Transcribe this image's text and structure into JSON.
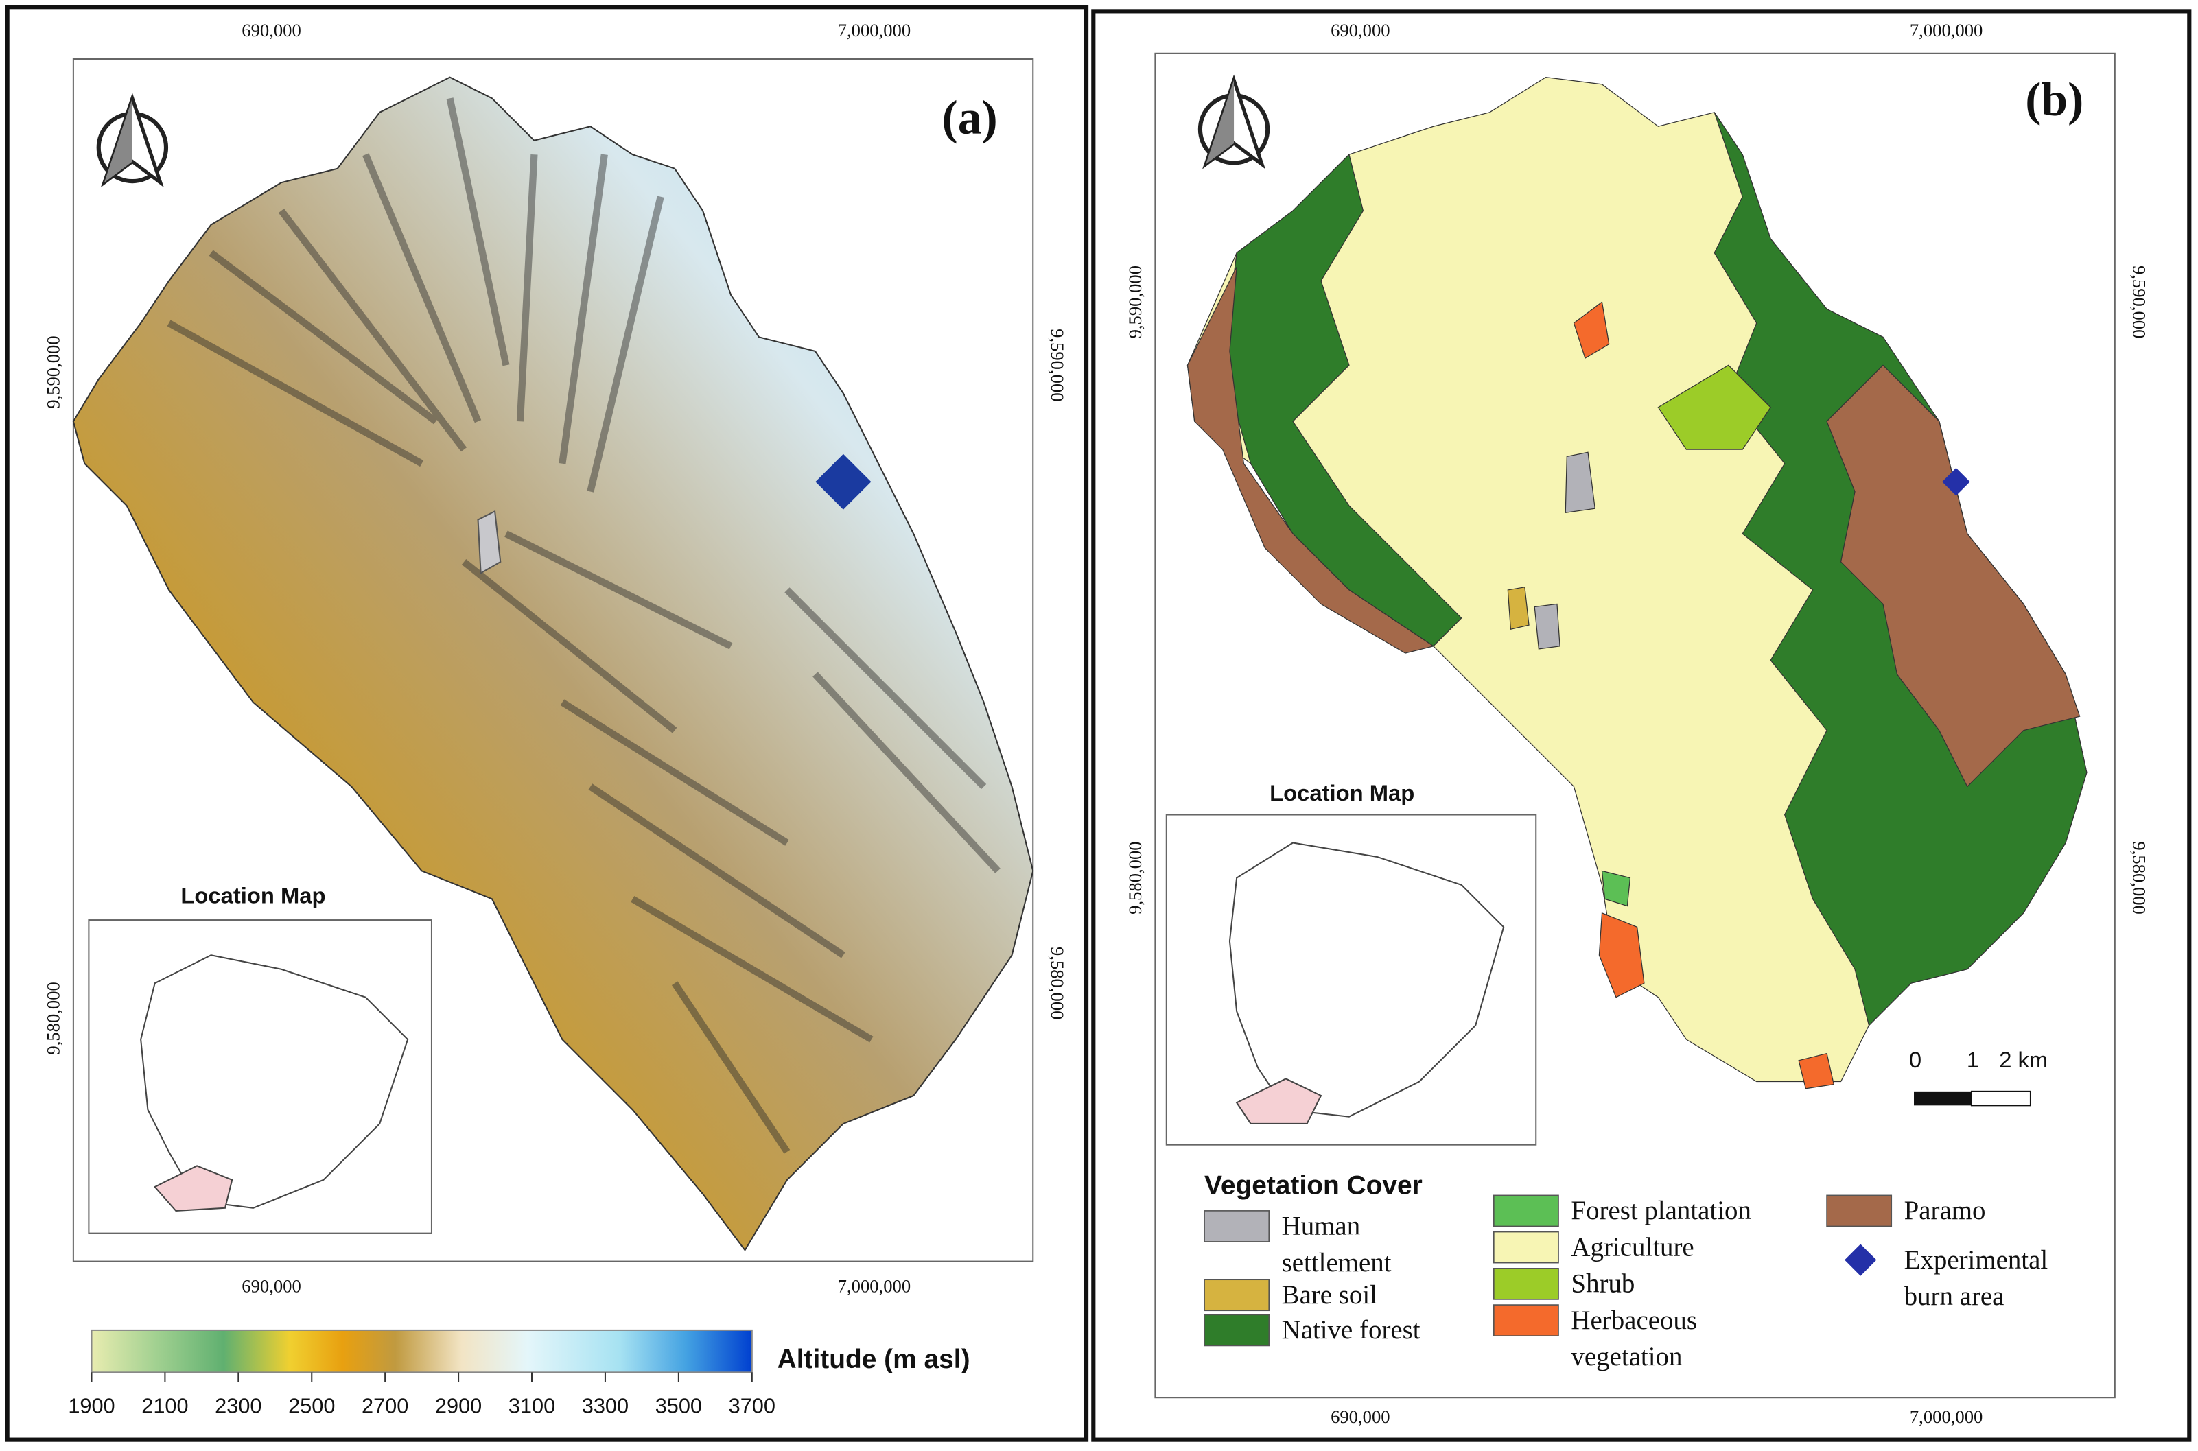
{
  "panel_a": {
    "label": "(a)",
    "x_labels_top": [
      "690,000",
      "7,000,000"
    ],
    "x_labels_bottom": [
      "690,000",
      "7,000,000"
    ],
    "y_labels_left": [
      "9,590,000",
      "9,580,000"
    ],
    "y_labels_right": [
      "9,590,000",
      "9,580,000"
    ],
    "location_map_title": "Location Map",
    "colorbar": {
      "title": "Altitude (m asl)",
      "ticks": [
        1900,
        2100,
        2300,
        2500,
        2700,
        2900,
        3100,
        3300,
        3500,
        3700
      ]
    }
  },
  "panel_b": {
    "label": "(b)",
    "x_labels_top": [
      "690,000",
      "7,000,000"
    ],
    "x_labels_bottom": [
      "690,000",
      "7,000,000"
    ],
    "y_labels_left": [
      "9,590,000",
      "9,580,000"
    ],
    "y_labels_right": [
      "9,590,000",
      "9,580,000"
    ],
    "location_map_title": "Location Map",
    "scale_bar": [
      "0",
      "1",
      "2 km"
    ],
    "legend": {
      "title": "Vegetation Cover",
      "items": [
        {
          "label": [
            "Human",
            "settlement"
          ],
          "color": "#b2b2b8"
        },
        {
          "label": [
            "Bare soil"
          ],
          "color": "#d6b340"
        },
        {
          "label": [
            "Native forest"
          ],
          "color": "#2f7d2a"
        },
        {
          "label": [
            "Forest plantation"
          ],
          "color": "#5cbf55"
        },
        {
          "label": [
            "Agriculture"
          ],
          "color": "#f7f5b4"
        },
        {
          "label": [
            "Shrub"
          ],
          "color": "#9ccc28"
        },
        {
          "label": [
            "Herbaceous",
            "vegetation"
          ],
          "color": "#f46a2c"
        },
        {
          "label": [
            "Paramo"
          ],
          "color": "#a4694a"
        },
        {
          "label": [
            "Experimental",
            "burn area"
          ],
          "color": "#2430a8"
        }
      ]
    }
  }
}
